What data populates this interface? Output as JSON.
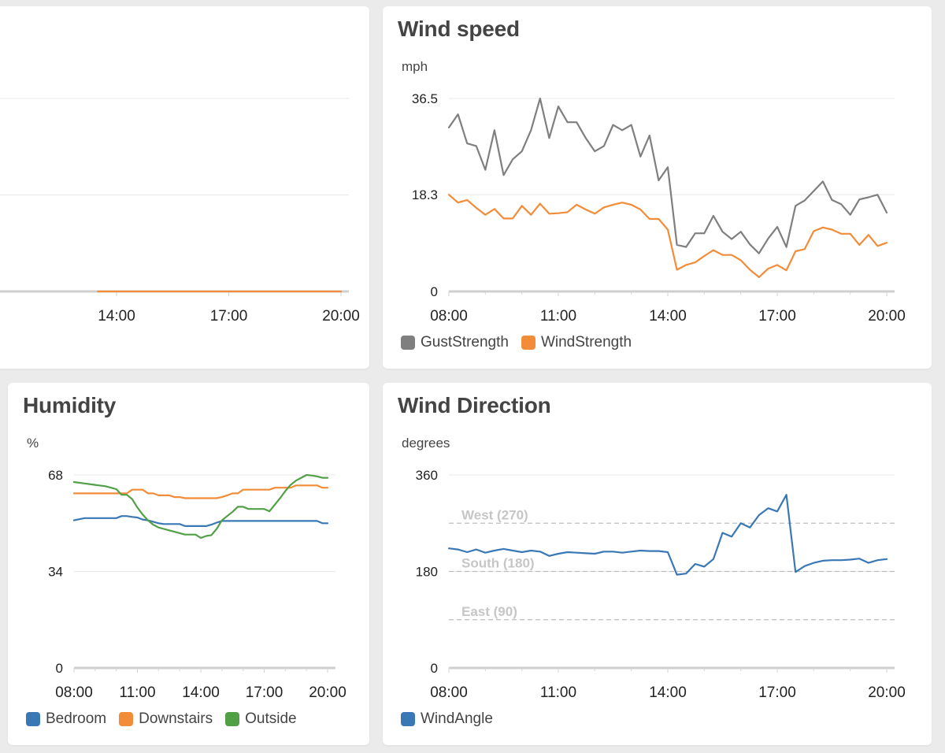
{
  "colors": {
    "gust": "#7f7f7f",
    "wind": "#f28c38",
    "bedroom": "#3a78b5",
    "downstairs": "#f28c38",
    "outside": "#52a046",
    "windangle": "#3a78b5",
    "refline": "#c8c8c8"
  },
  "chart_data": [
    {
      "id": "partial",
      "type": "line",
      "title": "",
      "ylim": [
        0,
        2
      ],
      "x_ticks": [
        "14:00",
        "17:00",
        "20:00"
      ],
      "series": [
        {
          "color": "#f28c38",
          "x": [
            13.5,
            20
          ],
          "values": [
            0,
            0
          ]
        }
      ]
    },
    {
      "id": "wind",
      "type": "line",
      "title": "Wind speed",
      "ylabel": "mph",
      "ylim": [
        0,
        36.5
      ],
      "y_ticks": [
        "0",
        "18.3",
        "36.5"
      ],
      "x_ticks": [
        "08:00",
        "11:00",
        "14:00",
        "17:00",
        "20:00"
      ],
      "grid": true,
      "legend": "bottom-left",
      "series": [
        {
          "name": "GustStrength",
          "color": "#7f7f7f",
          "x": [
            8.0,
            8.25,
            8.5,
            8.75,
            9.0,
            9.25,
            9.5,
            9.75,
            10.0,
            10.25,
            10.5,
            10.75,
            11.0,
            11.25,
            11.5,
            11.75,
            12.0,
            12.25,
            12.5,
            12.75,
            13.0,
            13.25,
            13.5,
            13.75,
            14.0,
            14.25,
            14.5,
            14.75,
            15.0,
            15.25,
            15.5,
            15.75,
            16.0,
            16.25,
            16.5,
            16.75,
            17.0,
            17.25,
            17.5,
            17.75,
            18.0,
            18.25,
            18.5,
            18.75,
            19.0,
            19.25,
            19.5,
            19.75,
            20.0
          ],
          "values": [
            31.0,
            33.5,
            28.0,
            27.5,
            23.0,
            30.5,
            22.0,
            25.0,
            26.5,
            30.5,
            36.5,
            29.0,
            35.0,
            32.0,
            32.0,
            29.0,
            26.5,
            27.5,
            31.5,
            30.5,
            31.5,
            25.5,
            29.5,
            21.0,
            23.5,
            8.8,
            8.4,
            11.0,
            11.0,
            14.3,
            11.3,
            9.9,
            11.3,
            8.9,
            7.2,
            10.0,
            12.2,
            8.4,
            16.2,
            17.2,
            19.0,
            20.8,
            17.3,
            16.5,
            14.5,
            17.4,
            17.8,
            18.3,
            14.9
          ]
        },
        {
          "name": "WindStrength",
          "color": "#f28c38",
          "x": [
            8.0,
            8.25,
            8.5,
            8.75,
            9.0,
            9.25,
            9.5,
            9.75,
            10.0,
            10.25,
            10.5,
            10.75,
            11.0,
            11.25,
            11.5,
            11.75,
            12.0,
            12.25,
            12.5,
            12.75,
            13.0,
            13.25,
            13.5,
            13.75,
            14.0,
            14.25,
            14.5,
            14.75,
            15.0,
            15.25,
            15.5,
            15.75,
            16.0,
            16.25,
            16.5,
            16.75,
            17.0,
            17.25,
            17.5,
            17.75,
            18.0,
            18.25,
            18.5,
            18.75,
            19.0,
            19.25,
            19.5,
            19.75,
            20.0
          ],
          "values": [
            18.3,
            16.8,
            17.3,
            15.8,
            14.5,
            15.6,
            13.8,
            13.8,
            16.2,
            14.5,
            16.6,
            14.7,
            14.8,
            15.0,
            16.4,
            15.5,
            14.7,
            15.9,
            16.4,
            16.8,
            16.4,
            15.5,
            13.7,
            13.7,
            11.7,
            4.1,
            5.0,
            5.5,
            6.7,
            7.8,
            6.9,
            6.9,
            5.9,
            4.1,
            2.7,
            4.3,
            5.0,
            4.0,
            7.6,
            8.0,
            11.4,
            12.1,
            11.7,
            10.9,
            10.9,
            8.8,
            10.7,
            8.6,
            9.2
          ]
        }
      ]
    },
    {
      "id": "humidity",
      "type": "line",
      "title": "Humidity",
      "ylabel": "%",
      "ylim": [
        0,
        68
      ],
      "y_ticks": [
        "0",
        "34",
        "68"
      ],
      "x_ticks": [
        "08:00",
        "11:00",
        "14:00",
        "17:00",
        "20:00"
      ],
      "grid": true,
      "legend": "bottom-left",
      "series": [
        {
          "name": "Bedroom",
          "color": "#3a78b5",
          "x": [
            8.0,
            8.5,
            9.0,
            9.5,
            10.0,
            10.25,
            10.5,
            10.75,
            11.0,
            11.25,
            11.5,
            11.75,
            12.0,
            12.25,
            12.5,
            12.75,
            13.0,
            13.25,
            13.5,
            13.75,
            14.0,
            14.25,
            14.5,
            14.75,
            15.0,
            15.25,
            15.5,
            15.75,
            16.0,
            16.5,
            17.0,
            17.5,
            18.0,
            18.5,
            19.0,
            19.5,
            19.75,
            20.0
          ],
          "values": [
            52.0,
            52.8,
            52.8,
            52.8,
            52.8,
            53.5,
            53.5,
            53.2,
            53.0,
            52.3,
            52.0,
            51.5,
            51.0,
            50.7,
            50.7,
            50.7,
            50.7,
            50.0,
            50.0,
            50.0,
            50.0,
            50.0,
            50.5,
            51.2,
            51.8,
            51.8,
            51.8,
            51.8,
            51.8,
            51.8,
            51.8,
            51.8,
            51.8,
            51.8,
            51.8,
            51.8,
            51.0,
            51.0
          ],
          "labels": []
        },
        {
          "name": "Downstairs",
          "color": "#f28c38",
          "x": [
            8.0,
            8.5,
            9.0,
            9.5,
            10.0,
            10.25,
            10.5,
            10.75,
            11.0,
            11.25,
            11.5,
            11.75,
            12.0,
            12.25,
            12.5,
            12.75,
            13.0,
            13.25,
            13.5,
            13.75,
            14.0,
            14.25,
            14.5,
            14.75,
            15.0,
            15.25,
            15.5,
            15.75,
            16.0,
            16.25,
            16.5,
            16.75,
            17.0,
            17.25,
            17.5,
            17.75,
            18.0,
            18.25,
            18.5,
            18.75,
            19.0,
            19.25,
            19.5,
            19.75,
            20.0
          ],
          "values": [
            61.5,
            61.5,
            61.5,
            61.5,
            61.5,
            61.5,
            61.5,
            62.8,
            62.8,
            62.8,
            61.5,
            61.5,
            60.8,
            60.8,
            60.8,
            60.2,
            60.2,
            59.8,
            59.8,
            59.8,
            59.8,
            59.8,
            59.8,
            59.8,
            60.2,
            60.8,
            61.5,
            61.5,
            62.8,
            62.8,
            62.8,
            62.8,
            62.8,
            62.8,
            63.5,
            63.5,
            63.5,
            63.5,
            64.3,
            64.3,
            64.3,
            64.3,
            64.3,
            63.5,
            63.5
          ]
        },
        {
          "name": "Outside",
          "color": "#52a046",
          "x": [
            8.0,
            8.5,
            9.0,
            9.5,
            9.75,
            10.0,
            10.25,
            10.5,
            10.75,
            11.0,
            11.25,
            11.5,
            11.75,
            12.0,
            12.25,
            12.5,
            12.75,
            13.0,
            13.25,
            13.5,
            13.75,
            14.0,
            14.25,
            14.5,
            14.75,
            15.0,
            15.25,
            15.5,
            15.75,
            16.0,
            16.25,
            16.5,
            16.75,
            17.0,
            17.25,
            17.5,
            17.75,
            18.0,
            18.25,
            18.5,
            18.75,
            19.0,
            19.25,
            19.5,
            19.75,
            20.0
          ],
          "values": [
            65.5,
            65.0,
            64.5,
            64.0,
            63.5,
            63.0,
            61.0,
            61.0,
            59.5,
            56.5,
            54.0,
            52.0,
            50.5,
            49.5,
            49.0,
            48.5,
            48.0,
            47.5,
            47.0,
            47.0,
            47.0,
            45.8,
            46.5,
            46.8,
            49.0,
            52.0,
            53.5,
            55.0,
            56.8,
            56.8,
            56.0,
            56.0,
            56.0,
            56.0,
            55.2,
            57.5,
            59.8,
            62.3,
            64.5,
            66.0,
            67.0,
            68.0,
            67.8,
            67.5,
            67.0,
            67.0
          ]
        }
      ]
    },
    {
      "id": "direction",
      "type": "line",
      "title": "Wind Direction",
      "ylabel": "degrees",
      "ylim": [
        0,
        360
      ],
      "y_ticks": [
        "0",
        "180",
        "360"
      ],
      "x_ticks": [
        "08:00",
        "11:00",
        "14:00",
        "17:00",
        "20:00"
      ],
      "grid": true,
      "legend": "bottom-left",
      "reference_lines": [
        {
          "label": "West (270)",
          "value": 270
        },
        {
          "label": "South (180)",
          "value": 180
        },
        {
          "label": "East (90)",
          "value": 90
        }
      ],
      "series": [
        {
          "name": "WindAngle",
          "color": "#3a78b5",
          "x": [
            8.0,
            8.25,
            8.5,
            8.75,
            9.0,
            9.25,
            9.5,
            9.75,
            10.0,
            10.25,
            10.5,
            10.75,
            11.0,
            11.25,
            11.5,
            11.75,
            12.0,
            12.25,
            12.5,
            12.75,
            13.0,
            13.25,
            13.5,
            13.75,
            14.0,
            14.25,
            14.5,
            14.75,
            15.0,
            15.25,
            15.5,
            15.75,
            16.0,
            16.25,
            16.5,
            16.75,
            17.0,
            17.25,
            17.5,
            17.75,
            18.0,
            18.25,
            18.5,
            18.75,
            19.0,
            19.25,
            19.5,
            19.75,
            20.0
          ],
          "values": [
            223,
            221,
            216,
            221,
            215,
            219,
            222,
            219,
            216,
            219,
            217,
            209,
            213,
            216,
            215,
            214,
            213,
            217,
            217,
            215,
            217,
            219,
            218,
            218,
            216,
            174,
            176,
            194,
            189,
            203,
            252,
            245,
            270,
            262,
            285,
            298,
            292,
            323,
            179,
            190,
            196,
            200,
            201,
            201,
            202,
            204,
            196,
            201,
            203
          ]
        }
      ]
    }
  ]
}
